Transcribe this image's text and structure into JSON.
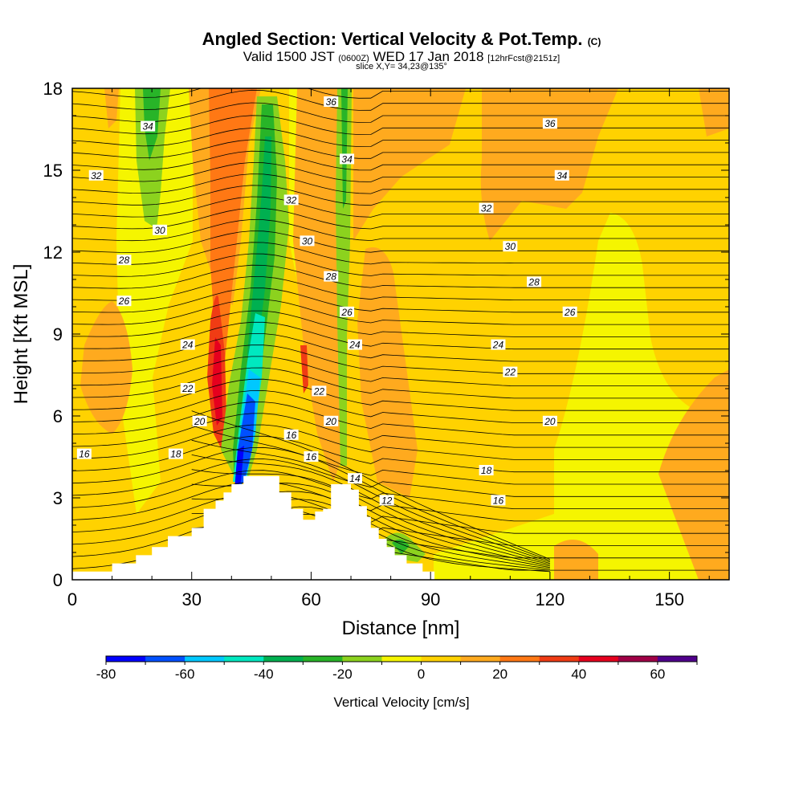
{
  "header": {
    "title": "Angled Section: Vertical Velocity & Pot.Temp.",
    "title_unit": "(C)",
    "valid_main": "Valid 1500 JST",
    "valid_utc": "(0600Z)",
    "valid_date": "WED 17 Jan 2018",
    "valid_fcst": "[12hrFcst@2151z]",
    "slice": "slice X,Y= 34,23@135°"
  },
  "chart_data": {
    "type": "heatmap",
    "xlabel": "Distance [nm]",
    "ylabel": "Height [Kft MSL]",
    "xlim": [
      0,
      165
    ],
    "ylim": [
      0,
      18
    ],
    "xticks": [
      "0",
      "30",
      "60",
      "90",
      "120",
      "150"
    ],
    "yticks": [
      "0",
      "3",
      "6",
      "9",
      "12",
      "15",
      "18"
    ],
    "colorbar": {
      "label": "Vertical Velocity [cm/s]",
      "range": [
        -80,
        70
      ],
      "step": 10,
      "tick_labels": [
        "-80",
        "-60",
        "-40",
        "-20",
        "0",
        "20",
        "40",
        "60"
      ],
      "colors": [
        "#0000ff",
        "#0050ff",
        "#00c8ff",
        "#00e8c0",
        "#00b050",
        "#28b428",
        "#8cd21e",
        "#f5f500",
        "#ffd200",
        "#ffaa1e",
        "#ff7814",
        "#f03c14",
        "#e6001e",
        "#a00046",
        "#50008c"
      ]
    },
    "terrain": [
      [
        0,
        0.3
      ],
      [
        10,
        0.3
      ],
      [
        10,
        0.6
      ],
      [
        16,
        0.6
      ],
      [
        16,
        0.9
      ],
      [
        20,
        0.9
      ],
      [
        20,
        1.2
      ],
      [
        24,
        1.2
      ],
      [
        24,
        1.6
      ],
      [
        30,
        1.6
      ],
      [
        30,
        1.9
      ],
      [
        33,
        1.9
      ],
      [
        33,
        2.6
      ],
      [
        36,
        2.6
      ],
      [
        36,
        2.9
      ],
      [
        38,
        2.9
      ],
      [
        38,
        3.2
      ],
      [
        40,
        3.2
      ],
      [
        40,
        3.5
      ],
      [
        43,
        3.5
      ],
      [
        43,
        3.8
      ],
      [
        52,
        3.8
      ],
      [
        52,
        3.2
      ],
      [
        55,
        3.2
      ],
      [
        55,
        2.6
      ],
      [
        58,
        2.6
      ],
      [
        58,
        2.2
      ],
      [
        61,
        2.2
      ],
      [
        61,
        2.5
      ],
      [
        63,
        2.5
      ],
      [
        63,
        2.6
      ],
      [
        65,
        2.6
      ],
      [
        65,
        3.5
      ],
      [
        70,
        3.5
      ],
      [
        70,
        3.3
      ],
      [
        72,
        3.3
      ],
      [
        72,
        2.7
      ],
      [
        74,
        2.7
      ],
      [
        74,
        2.3
      ],
      [
        75,
        2.3
      ],
      [
        75,
        1.9
      ],
      [
        77,
        1.9
      ],
      [
        77,
        1.5
      ],
      [
        79,
        1.5
      ],
      [
        79,
        1.2
      ],
      [
        81,
        1.2
      ],
      [
        81,
        0.9
      ],
      [
        84,
        0.9
      ],
      [
        84,
        0.6
      ],
      [
        88,
        0.6
      ],
      [
        88,
        0.3
      ],
      [
        91,
        0.3
      ]
    ],
    "theta_contour_labels": [
      {
        "t": "36",
        "x": 65,
        "y": 17.5
      },
      {
        "t": "36",
        "x": 120,
        "y": 16.7
      },
      {
        "t": "34",
        "x": 19,
        "y": 16.6
      },
      {
        "t": "34",
        "x": 69,
        "y": 15.4
      },
      {
        "t": "34",
        "x": 123,
        "y": 14.8
      },
      {
        "t": "32",
        "x": 6,
        "y": 14.8
      },
      {
        "t": "32",
        "x": 55,
        "y": 13.9
      },
      {
        "t": "32",
        "x": 104,
        "y": 13.6
      },
      {
        "t": "30",
        "x": 22,
        "y": 12.8
      },
      {
        "t": "30",
        "x": 59,
        "y": 12.4
      },
      {
        "t": "30",
        "x": 110,
        "y": 12.2
      },
      {
        "t": "28",
        "x": 13,
        "y": 11.7
      },
      {
        "t": "28",
        "x": 65,
        "y": 11.1
      },
      {
        "t": "28",
        "x": 116,
        "y": 10.9
      },
      {
        "t": "26",
        "x": 13,
        "y": 10.2
      },
      {
        "t": "26",
        "x": 69,
        "y": 9.8
      },
      {
        "t": "26",
        "x": 125,
        "y": 9.8
      },
      {
        "t": "24",
        "x": 29,
        "y": 8.6
      },
      {
        "t": "24",
        "x": 71,
        "y": 8.6
      },
      {
        "t": "24",
        "x": 107,
        "y": 8.6
      },
      {
        "t": "22",
        "x": 29,
        "y": 7.0
      },
      {
        "t": "22",
        "x": 62,
        "y": 6.9
      },
      {
        "t": "22",
        "x": 110,
        "y": 7.6
      },
      {
        "t": "20",
        "x": 32,
        "y": 5.8
      },
      {
        "t": "20",
        "x": 65,
        "y": 5.8
      },
      {
        "t": "20",
        "x": 120,
        "y": 5.8
      },
      {
        "t": "18",
        "x": 26,
        "y": 4.6
      },
      {
        "t": "18",
        "x": 104,
        "y": 4.0
      },
      {
        "t": "16",
        "x": 3,
        "y": 4.6
      },
      {
        "t": "16",
        "x": 55,
        "y": 5.3
      },
      {
        "t": "16",
        "x": 60,
        "y": 4.5
      },
      {
        "t": "16",
        "x": 107,
        "y": 2.9
      },
      {
        "t": "14",
        "x": 71,
        "y": 3.7
      },
      {
        "t": "12",
        "x": 79,
        "y": 2.9
      }
    ]
  }
}
